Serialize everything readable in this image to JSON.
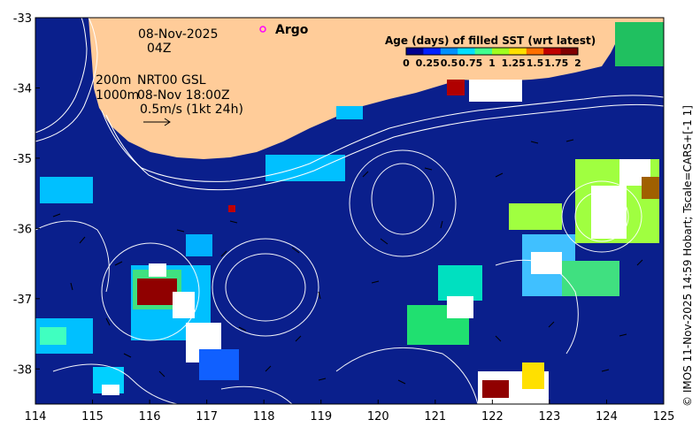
{
  "map": {
    "date_label": "08-Nov-2025",
    "time_label": "04Z",
    "legend_argo": "Argo",
    "isobath_200": "200m",
    "isobath_1000": "1000m",
    "product_label": "NRT00 GSL",
    "product_time": "08-Nov 18:00Z",
    "velocity_scale": "0.5m/s (1kt 24h)",
    "credit": "© IMOS 11-Nov-2025 14:59 Hobart; Tscale=CARS+[-1 1]",
    "lon_ticks": [
      "114",
      "115",
      "116",
      "117",
      "118",
      "119",
      "120",
      "121",
      "122",
      "123",
      "124",
      "125"
    ],
    "lat_ticks": [
      "-33",
      "-34",
      "-35",
      "-36",
      "-37",
      "-38"
    ],
    "lon_range": [
      114,
      125
    ],
    "lat_range": [
      -38.5,
      -33
    ],
    "colors": {
      "ocean": "#0a1f8c",
      "land": "#ffcc99",
      "argo_marker": "#ff00ff"
    }
  },
  "colorbar": {
    "title": "Age (days) of filled SST (wrt latest)",
    "ticks": [
      "0",
      "0.25",
      "0.5",
      "0.75",
      "1",
      "1.25",
      "1.5",
      "1.75",
      "2"
    ],
    "colors": [
      "#00008f",
      "#0020ff",
      "#0090ff",
      "#00e0ff",
      "#40ff90",
      "#a0ff20",
      "#ffe000",
      "#ff7000",
      "#c00000",
      "#800000"
    ]
  }
}
